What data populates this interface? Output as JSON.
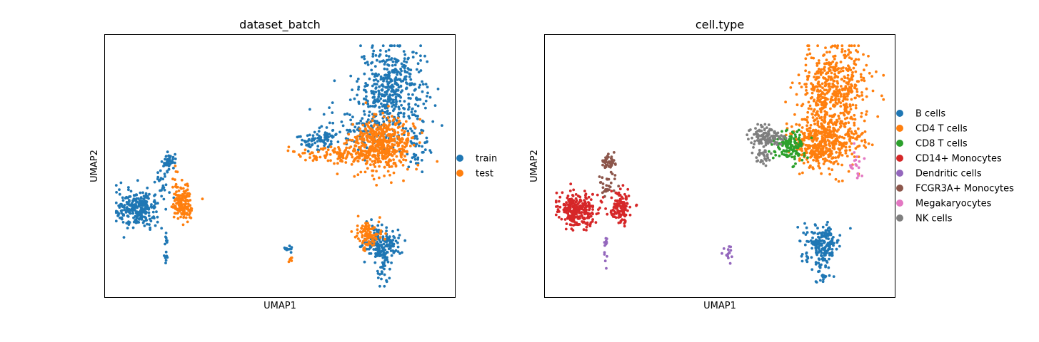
{
  "chart_data": [
    {
      "type": "scatter",
      "title": "dataset_batch",
      "xlabel": "UMAP1",
      "ylabel": "UMAP2",
      "xlim": [
        0,
        100
      ],
      "ylim": [
        0,
        100
      ],
      "grid": false,
      "ticks": false,
      "legend_placement": "right",
      "series": [
        {
          "name": "train",
          "color": "#1f77b4",
          "clusters": [
            {
              "x": 84,
              "y": 82,
              "sx": 5.0,
              "sy": 8.5,
              "n": 420
            },
            {
              "x": 62,
              "y": 61,
              "sx": 3.2,
              "sy": 2.2,
              "n": 80
            },
            {
              "x": 75,
              "y": 66,
              "sx": 5.5,
              "sy": 5.5,
              "n": 120
            },
            {
              "x": 92,
              "y": 58,
              "sx": 2.2,
              "sy": 5.0,
              "n": 45
            },
            {
              "x": 7,
              "y": 32,
              "sx": 3.2,
              "sy": 3.8,
              "n": 250
            },
            {
              "x": 16.5,
              "y": 51.5,
              "sx": 1.2,
              "sy": 1.8,
              "n": 45
            },
            {
              "x": 14.5,
              "y": 43,
              "sx": 1.0,
              "sy": 3.5,
              "n": 25
            },
            {
              "x": 15.5,
              "y": 16,
              "sx": 0.3,
              "sy": 3.2,
              "n": 14
            },
            {
              "x": 81,
              "y": 18,
              "sx": 2.8,
              "sy": 3.8,
              "n": 170
            },
            {
              "x": 81,
              "y": 7,
              "sx": 1.0,
              "sy": 3.0,
              "n": 28
            },
            {
              "x": 52.5,
              "y": 15.5,
              "sx": 0.8,
              "sy": 0.8,
              "n": 10
            }
          ]
        },
        {
          "name": "test",
          "color": "#ff7f0e",
          "clusters": [
            {
              "x": 81,
              "y": 59,
              "sx": 4.6,
              "sy": 5.2,
              "n": 500
            },
            {
              "x": 68,
              "y": 55,
              "sx": 6.5,
              "sy": 1.6,
              "n": 110
            },
            {
              "x": 20.5,
              "y": 34,
              "sx": 1.6,
              "sy": 3.5,
              "n": 150
            },
            {
              "x": 18.5,
              "y": 43.5,
              "sx": 0.7,
              "sy": 2.8,
              "n": 12
            },
            {
              "x": 76.5,
              "y": 22,
              "sx": 1.6,
              "sy": 3.0,
              "n": 110
            },
            {
              "x": 53.5,
              "y": 12,
              "sx": 0.4,
              "sy": 0.7,
              "n": 6
            }
          ]
        }
      ]
    },
    {
      "type": "scatter",
      "title": "cell.type",
      "xlabel": "UMAP1",
      "ylabel": "UMAP2",
      "xlim": [
        0,
        100
      ],
      "ylim": [
        0,
        100
      ],
      "grid": false,
      "ticks": false,
      "legend_placement": "right",
      "series": [
        {
          "name": "B cells",
          "color": "#1f77b4",
          "clusters": [
            {
              "x": 81,
              "y": 18,
              "sx": 2.8,
              "sy": 3.8,
              "n": 180
            },
            {
              "x": 81,
              "y": 7,
              "sx": 1.0,
              "sy": 3.0,
              "n": 25
            }
          ]
        },
        {
          "name": "CD4 T cells",
          "color": "#ff7f0e",
          "clusters": [
            {
              "x": 84,
              "y": 82,
              "sx": 5.0,
              "sy": 8.5,
              "n": 470
            },
            {
              "x": 81,
              "y": 60,
              "sx": 4.4,
              "sy": 5.5,
              "n": 430
            },
            {
              "x": 90,
              "y": 62,
              "sx": 2.2,
              "sy": 4.0,
              "n": 50
            }
          ]
        },
        {
          "name": "CD8 T cells",
          "color": "#2ca02c",
          "clusters": [
            {
              "x": 71,
              "y": 58,
              "sx": 2.5,
              "sy": 3.5,
              "n": 130
            }
          ]
        },
        {
          "name": "CD14+ Monocytes",
          "color": "#d62728",
          "clusters": [
            {
              "x": 7,
              "y": 32,
              "sx": 3.2,
              "sy": 3.8,
              "n": 260
            },
            {
              "x": 20,
              "y": 33,
              "sx": 1.6,
              "sy": 3.5,
              "n": 120
            }
          ]
        },
        {
          "name": "Dendritic cells",
          "color": "#9467bd",
          "clusters": [
            {
              "x": 15.5,
              "y": 16,
              "sx": 0.3,
              "sy": 3.0,
              "n": 14
            },
            {
              "x": 52.5,
              "y": 14,
              "sx": 0.7,
              "sy": 2.0,
              "n": 14
            }
          ]
        },
        {
          "name": "FCGR3A+ Monocytes",
          "color": "#8c564b",
          "clusters": [
            {
              "x": 16.5,
              "y": 51.5,
              "sx": 1.2,
              "sy": 1.8,
              "n": 45
            },
            {
              "x": 16,
              "y": 43,
              "sx": 1.2,
              "sy": 3.5,
              "n": 28
            }
          ]
        },
        {
          "name": "Megakaryocytes",
          "color": "#e377c2",
          "clusters": [
            {
              "x": 91,
              "y": 51,
              "sx": 1.0,
              "sy": 3.0,
              "n": 18
            }
          ]
        },
        {
          "name": "NK cells",
          "color": "#7f7f7f",
          "clusters": [
            {
              "x": 64,
              "y": 62,
              "sx": 2.2,
              "sy": 2.2,
              "n": 120
            },
            {
              "x": 63,
              "y": 54,
              "sx": 1.2,
              "sy": 2.0,
              "n": 30
            }
          ]
        }
      ]
    }
  ]
}
